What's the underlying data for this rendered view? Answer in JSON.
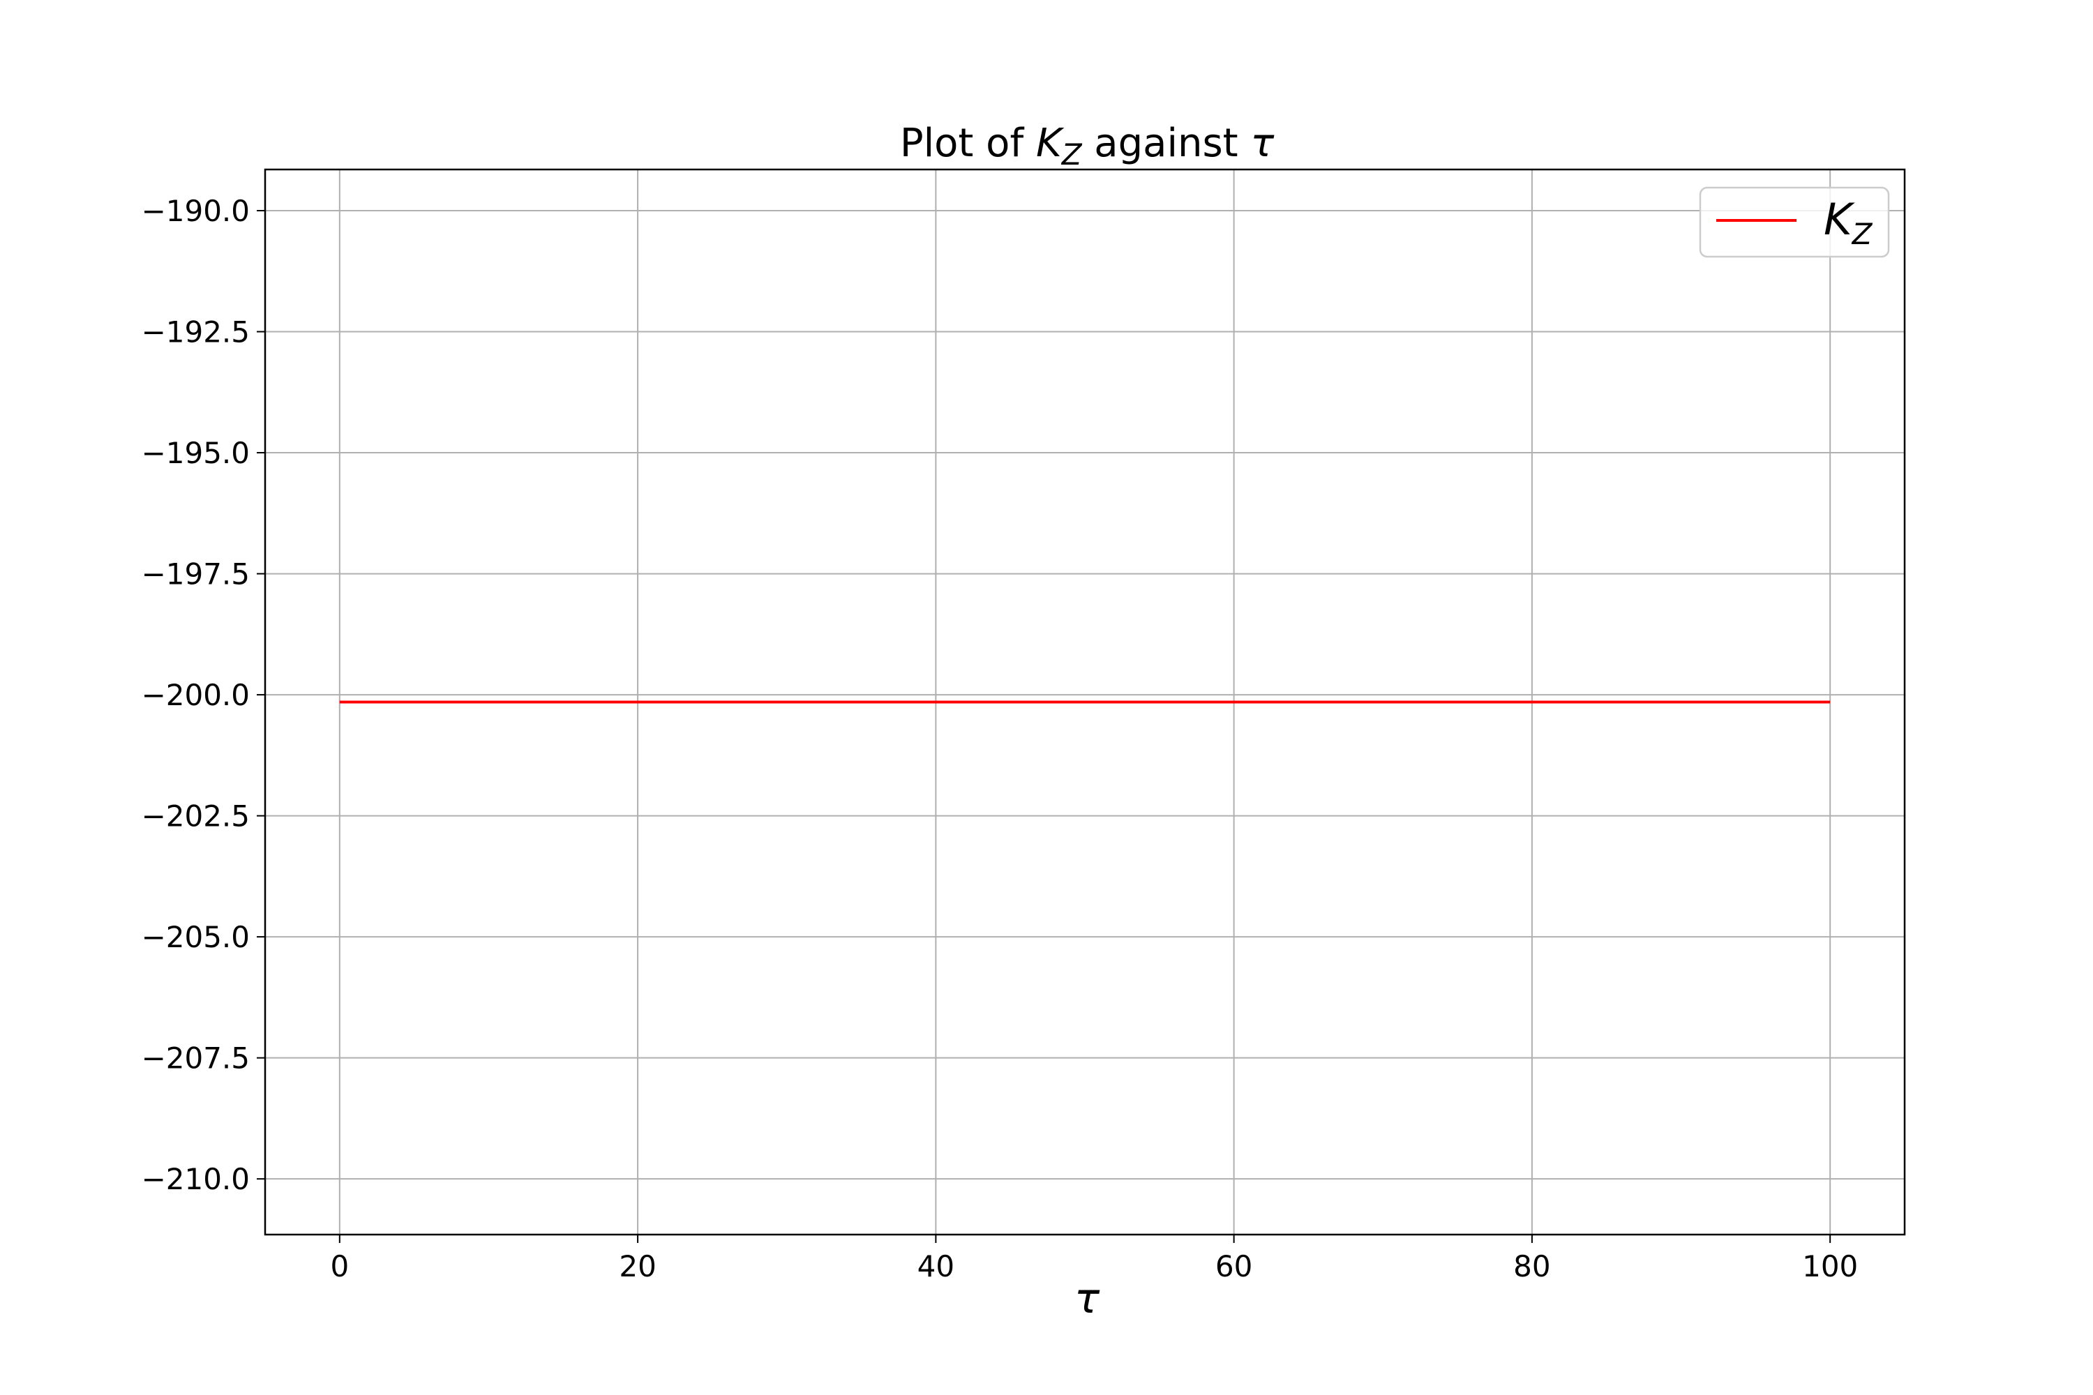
{
  "chart_data": {
    "type": "line",
    "title": {
      "prefix": "Plot of ",
      "symbol": "K",
      "subscript": "Z",
      "middle": " against ",
      "variable": "τ"
    },
    "xlabel": "τ",
    "ylabel": "",
    "xlim": [
      -5,
      105
    ],
    "ylim": [
      -211.15,
      -189.15
    ],
    "xticks": [
      0,
      20,
      40,
      60,
      80,
      100
    ],
    "xtick_labels": [
      "0",
      "20",
      "40",
      "60",
      "80",
      "100"
    ],
    "yticks": [
      -190.0,
      -192.5,
      -195.0,
      -197.5,
      -200.0,
      -202.5,
      -205.0,
      -207.5,
      -210.0
    ],
    "ytick_labels": [
      "−190.0",
      "−192.5",
      "−195.0",
      "−197.5",
      "−200.0",
      "−202.5",
      "−205.0",
      "−207.5",
      "−210.0"
    ],
    "grid": true,
    "legend_position": "top-right",
    "series": [
      {
        "name": {
          "symbol": "K",
          "subscript": "Z"
        },
        "color": "#ff0000",
        "x": [
          0,
          100
        ],
        "y": [
          -200.15,
          -200.15
        ]
      }
    ]
  }
}
